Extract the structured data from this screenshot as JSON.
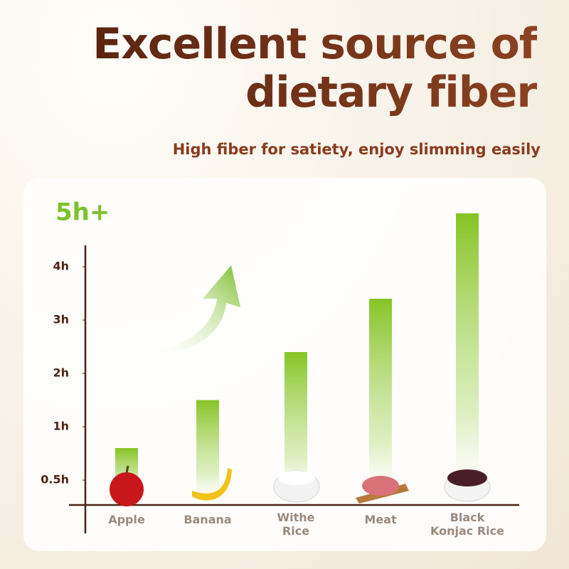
{
  "chart_data": {
    "type": "bar",
    "title": "Excellent source of dietary fiber",
    "subtitle": "High fiber for satiety, enjoy slimming easily",
    "annotation": "5h+",
    "categories": [
      "Apple",
      "Banana",
      "Withe\nRice",
      "Meat",
      "Black\nKonjac Rice"
    ],
    "values": [
      0.8,
      1.5,
      2.4,
      3.4,
      5.0
    ],
    "color": "#8cc63f",
    "ylim": [
      0.27,
      4.4
    ],
    "yticks": [
      {
        "value": 0.5,
        "label": "0.5h"
      },
      {
        "value": 1,
        "label": "1h"
      },
      {
        "value": 2,
        "label": "2h"
      },
      {
        "value": 3,
        "label": "3h"
      },
      {
        "value": 4,
        "label": "4h"
      }
    ]
  }
}
